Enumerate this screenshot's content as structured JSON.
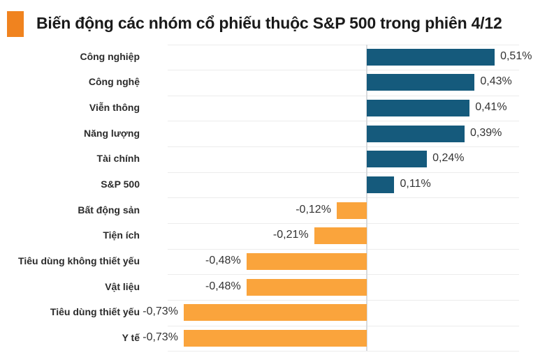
{
  "header": {
    "title": "Biến động các nhóm cổ phiếu thuộc S&P 500 trong phiên 4/12",
    "accent_color": "#F0831F"
  },
  "chart_data": {
    "type": "bar",
    "orientation": "horizontal",
    "title": "Biến động các nhóm cổ phiếu thuộc S&P 500 trong phiên 4/12",
    "categories": [
      "Công nghiệp",
      "Công nghệ",
      "Viễn thông",
      "Năng lượng",
      "Tài chính",
      "S&P 500",
      "Bất động sản",
      "Tiện ích",
      "Tiêu dùng không thiết yếu",
      "Vật liệu",
      "Tiêu dùng thiết yếu",
      "Y tế"
    ],
    "values": [
      0.51,
      0.43,
      0.41,
      0.39,
      0.24,
      0.11,
      -0.12,
      -0.21,
      -0.48,
      -0.48,
      -0.73,
      -0.73
    ],
    "value_labels": [
      "0,51%",
      "0,43%",
      "0,41%",
      "0,39%",
      "0,24%",
      "0,11%",
      "-0,12%",
      "-0,21%",
      "-0,48%",
      "-0,48%",
      "-0,73%",
      "-0,73%"
    ],
    "unit": "%",
    "positive_color": "#155A7C",
    "negative_color": "#FAA43C",
    "gridline_color": "#ECECEC",
    "zero_line_color": "#D8DBDE",
    "xlim": [
      -0.8,
      0.62
    ],
    "grid": "horizontal-row-separators",
    "legend": "none",
    "value_label_position": "outside-end"
  }
}
